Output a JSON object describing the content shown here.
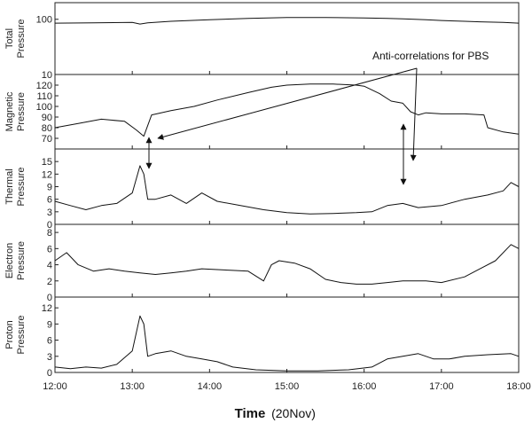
{
  "chart_data": {
    "type": "line",
    "x_tick_labels": [
      "12:00",
      "13:00",
      "14:00",
      "15:00",
      "16:00",
      "17:00",
      "18:00"
    ],
    "xlabel": "Time",
    "xlabel_sub": "(20Nov)",
    "xlim": [
      12,
      18
    ],
    "annotation": "Anti-correlations for PBS",
    "panels": [
      {
        "ylabel": [
          "Total",
          "Pressure"
        ],
        "scale": "log",
        "ylim": [
          10,
          200
        ],
        "yticks": [
          {
            "v": 10,
            "label": "10"
          },
          {
            "v": 100,
            "label": "100"
          }
        ],
        "series": [
          {
            "x": [
              12.0,
              12.5,
              13.0,
              13.1,
              13.2,
              13.5,
              14.0,
              14.5,
              15.0,
              15.5,
              16.0,
              16.3,
              16.5,
              16.8,
              17.0,
              17.3,
              17.5,
              17.8,
              18.0
            ],
            "y": [
              85,
              86,
              88,
              82,
              86,
              92,
              98,
              104,
              108,
              108,
              106,
              104,
              102,
              98,
              95,
              92,
              90,
              88,
              85
            ]
          }
        ]
      },
      {
        "ylabel": [
          "Magnetic",
          "Pressure"
        ],
        "scale": "linear",
        "ylim": [
          60,
          130
        ],
        "yticks": [
          {
            "v": 70,
            "label": "70"
          },
          {
            "v": 80,
            "label": "80"
          },
          {
            "v": 90,
            "label": "90"
          },
          {
            "v": 100,
            "label": "100"
          },
          {
            "v": 110,
            "label": "110"
          },
          {
            "v": 120,
            "label": "120"
          }
        ],
        "series": [
          {
            "x": [
              12.0,
              12.3,
              12.6,
              12.9,
              13.05,
              13.15,
              13.25,
              13.5,
              13.8,
              14.1,
              14.5,
              14.8,
              15.0,
              15.3,
              15.6,
              15.9,
              16.0,
              16.2,
              16.35,
              16.5,
              16.6,
              16.7,
              16.8,
              17.0,
              17.3,
              17.55,
              17.6,
              17.8,
              18.0
            ],
            "y": [
              80,
              84,
              88,
              86,
              78,
              72,
              92,
              96,
              100,
              106,
              113,
              118,
              120,
              121,
              121,
              120,
              119,
              112,
              105,
              103,
              95,
              92,
              94,
              93,
              93,
              92,
              80,
              76,
              74
            ]
          }
        ]
      },
      {
        "ylabel": [
          "Thermal",
          "Pressure"
        ],
        "scale": "linear",
        "ylim": [
          0,
          18
        ],
        "yticks": [
          {
            "v": 0,
            "label": "0"
          },
          {
            "v": 3,
            "label": "3"
          },
          {
            "v": 6,
            "label": "6"
          },
          {
            "v": 9,
            "label": "9"
          },
          {
            "v": 12,
            "label": "12"
          },
          {
            "v": 15,
            "label": "15"
          }
        ],
        "series": [
          {
            "x": [
              12.0,
              12.2,
              12.4,
              12.6,
              12.8,
              13.0,
              13.1,
              13.15,
              13.2,
              13.3,
              13.5,
              13.7,
              13.9,
              14.1,
              14.4,
              14.7,
              15.0,
              15.3,
              15.6,
              15.9,
              16.1,
              16.3,
              16.5,
              16.7,
              17.0,
              17.3,
              17.6,
              17.8,
              17.9,
              18.0
            ],
            "y": [
              5.5,
              4.5,
              3.5,
              4.5,
              5,
              7.5,
              14,
              12,
              6,
              6,
              7,
              5,
              7.5,
              5.5,
              4.5,
              3.5,
              2.8,
              2.5,
              2.6,
              2.8,
              3,
              4.5,
              5,
              4,
              4.5,
              6,
              7,
              8,
              10,
              9
            ]
          }
        ]
      },
      {
        "ylabel": [
          "Electron",
          "Pressure"
        ],
        "scale": "linear",
        "ylim": [
          0,
          9
        ],
        "yticks": [
          {
            "v": 0,
            "label": "0"
          },
          {
            "v": 2,
            "label": "2"
          },
          {
            "v": 4,
            "label": "4"
          },
          {
            "v": 6,
            "label": "6"
          },
          {
            "v": 8,
            "label": "8"
          }
        ],
        "series": [
          {
            "x": [
              12.0,
              12.15,
              12.3,
              12.5,
              12.7,
              12.9,
              13.1,
              13.3,
              13.5,
              13.7,
              13.9,
              14.1,
              14.3,
              14.5,
              14.7,
              14.8,
              14.9,
              15.1,
              15.3,
              15.5,
              15.7,
              15.9,
              16.1,
              16.3,
              16.5,
              16.8,
              17.0,
              17.3,
              17.5,
              17.7,
              17.9,
              18.0
            ],
            "y": [
              4.5,
              5.5,
              4,
              3.2,
              3.5,
              3.2,
              3,
              2.8,
              3,
              3.2,
              3.5,
              3.4,
              3.3,
              3.2,
              2,
              4,
              4.5,
              4.2,
              3.5,
              2.2,
              1.8,
              1.6,
              1.6,
              1.8,
              2,
              2,
              1.8,
              2.5,
              3.5,
              4.5,
              6.5,
              6
            ]
          }
        ]
      },
      {
        "ylabel": [
          "Proton",
          "Pressure"
        ],
        "scale": "linear",
        "ylim": [
          0,
          14
        ],
        "yticks": [
          {
            "v": 0,
            "label": "0"
          },
          {
            "v": 3,
            "label": "3"
          },
          {
            "v": 6,
            "label": "6"
          },
          {
            "v": 9,
            "label": "9"
          },
          {
            "v": 12,
            "label": "12"
          }
        ],
        "series": [
          {
            "x": [
              12.0,
              12.2,
              12.4,
              12.6,
              12.8,
              13.0,
              13.1,
              13.15,
              13.2,
              13.3,
              13.5,
              13.7,
              13.9,
              14.1,
              14.3,
              14.6,
              15.0,
              15.4,
              15.8,
              16.1,
              16.3,
              16.5,
              16.7,
              16.9,
              17.1,
              17.3,
              17.6,
              17.9,
              18.0
            ],
            "y": [
              1,
              0.7,
              1,
              0.8,
              1.5,
              4,
              10.5,
              9,
              3,
              3.5,
              4,
              3,
              2.5,
              2,
              1,
              0.5,
              0.3,
              0.3,
              0.5,
              1,
              2.5,
              3,
              3.5,
              2.5,
              2.5,
              3,
              3.3,
              3.5,
              3
            ]
          }
        ]
      }
    ]
  }
}
